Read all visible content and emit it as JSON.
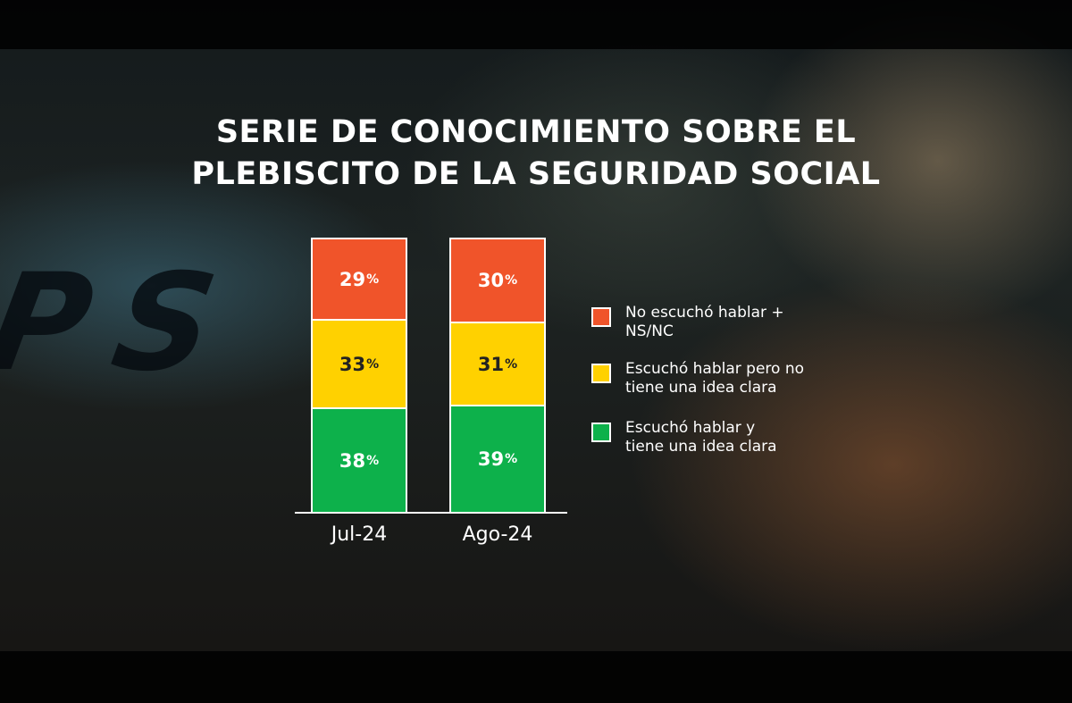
{
  "title_line1": "SERIE DE CONOCIMIENTO SOBRE EL",
  "title_line2": "PLEBISCITO DE LA SEGURIDAD SOCIAL",
  "background_text": "PS",
  "colors": {
    "red": "#f0542a",
    "yellow": "#ffd100",
    "green": "#0db14b"
  },
  "chart_data": {
    "type": "bar",
    "stacked": true,
    "categories": [
      "Jul-24",
      "Ago-24"
    ],
    "series": [
      {
        "name": "Escuchó hablar y tiene una idea clara",
        "values": [
          38,
          39
        ],
        "labels": [
          "38",
          "39"
        ],
        "color": "#0db14b"
      },
      {
        "name": "Escuchó hablar pero no tiene una idea clara",
        "values": [
          33,
          31
        ],
        "labels": [
          "33",
          "31"
        ],
        "color": "#ffd100"
      },
      {
        "name": "No escuchó hablar + NS/NC",
        "values": [
          29,
          30
        ],
        "labels": [
          "29",
          "30"
        ],
        "color": "#f0542a"
      }
    ],
    "unit": "%",
    "ylim": [
      0,
      100
    ],
    "grid": false,
    "legend_position": "right"
  },
  "legend": [
    {
      "label": "No escuchó hablar +\nNS/NC",
      "color": "#f0542a"
    },
    {
      "label": "Escuchó hablar pero no\ntiene una idea clara",
      "color": "#ffd100"
    },
    {
      "label": "Escuchó hablar y\ntiene una idea clara",
      "color": "#0db14b"
    }
  ]
}
